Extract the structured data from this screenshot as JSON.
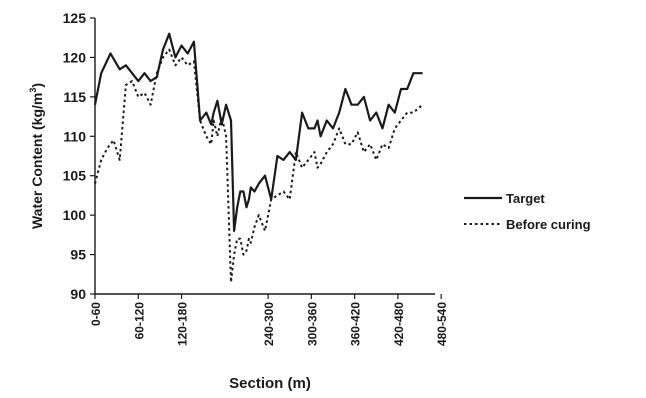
{
  "chart_data": {
    "type": "line",
    "xlabel": "Section (m)",
    "ylabel": "Water Content (kg/m³)",
    "ylabel_main": "Water Content (kg/m",
    "ylabel_sup": "3",
    "ylabel_close": ")",
    "ylim": [
      90,
      125
    ],
    "yticks": [
      90,
      95,
      100,
      105,
      110,
      115,
      120,
      125
    ],
    "xlim": [
      0,
      550
    ],
    "xtick_labels": [
      "0-60",
      "60-120",
      "120-180",
      "240-300",
      "300-360",
      "360-420",
      "420-480",
      "480-540"
    ],
    "xtick_positions": [
      0,
      70,
      140,
      280,
      350,
      420,
      490,
      560
    ],
    "grid": false,
    "legend_position": "right",
    "series": [
      {
        "name": "Target",
        "style": "solid",
        "x": [
          0,
          10,
          25,
          40,
          50,
          60,
          70,
          80,
          90,
          100,
          110,
          120,
          130,
          140,
          150,
          160,
          170,
          180,
          188,
          192,
          198,
          205,
          212,
          220,
          225,
          230,
          235,
          240,
          245,
          249,
          252,
          258,
          265,
          275,
          285,
          295,
          305,
          315,
          325,
          335,
          345,
          355,
          360,
          365,
          375,
          385,
          395,
          405,
          415,
          425,
          435,
          445,
          455,
          465,
          475,
          485,
          495,
          505,
          515,
          525,
          530
        ],
        "y": [
          114,
          118,
          120.5,
          118.5,
          119,
          118,
          117,
          118,
          117,
          117.5,
          121,
          123,
          120,
          121.5,
          120.5,
          122,
          112,
          113,
          111.5,
          113,
          114.5,
          111.5,
          114,
          112,
          98,
          101,
          103,
          103,
          101,
          102,
          103.5,
          103,
          104,
          105,
          102,
          107.5,
          107,
          108,
          107,
          113,
          111,
          111,
          112,
          110,
          112,
          111,
          113,
          116,
          114,
          114,
          115,
          112,
          113,
          111,
          114,
          113,
          116,
          116,
          118,
          118,
          118
        ]
      },
      {
        "name": "Before curing",
        "style": "dotted",
        "x": [
          0,
          10,
          20,
          30,
          40,
          50,
          60,
          70,
          80,
          90,
          100,
          110,
          120,
          130,
          140,
          150,
          160,
          170,
          180,
          188,
          192,
          198,
          205,
          212,
          220,
          225,
          230,
          235,
          240,
          245,
          249,
          252,
          258,
          265,
          275,
          285,
          295,
          305,
          315,
          325,
          335,
          345,
          355,
          360,
          365,
          375,
          385,
          395,
          405,
          415,
          425,
          435,
          445,
          455,
          465,
          475,
          485,
          495,
          505,
          515,
          530
        ],
        "y": [
          104,
          107,
          108.5,
          109.5,
          107,
          116.5,
          117,
          115,
          115.5,
          114,
          118,
          120,
          121,
          119,
          120,
          119,
          119.5,
          112,
          110,
          109,
          112,
          110,
          112.5,
          110,
          91.5,
          95,
          97,
          97,
          95,
          95.5,
          97,
          96.5,
          98.5,
          100,
          98,
          102,
          102.5,
          103,
          102,
          108,
          106,
          107,
          108,
          106,
          106.5,
          108,
          109,
          111,
          109,
          109,
          110.5,
          108,
          109,
          107,
          109,
          108.5,
          111,
          112,
          113,
          113,
          114
        ]
      }
    ]
  }
}
